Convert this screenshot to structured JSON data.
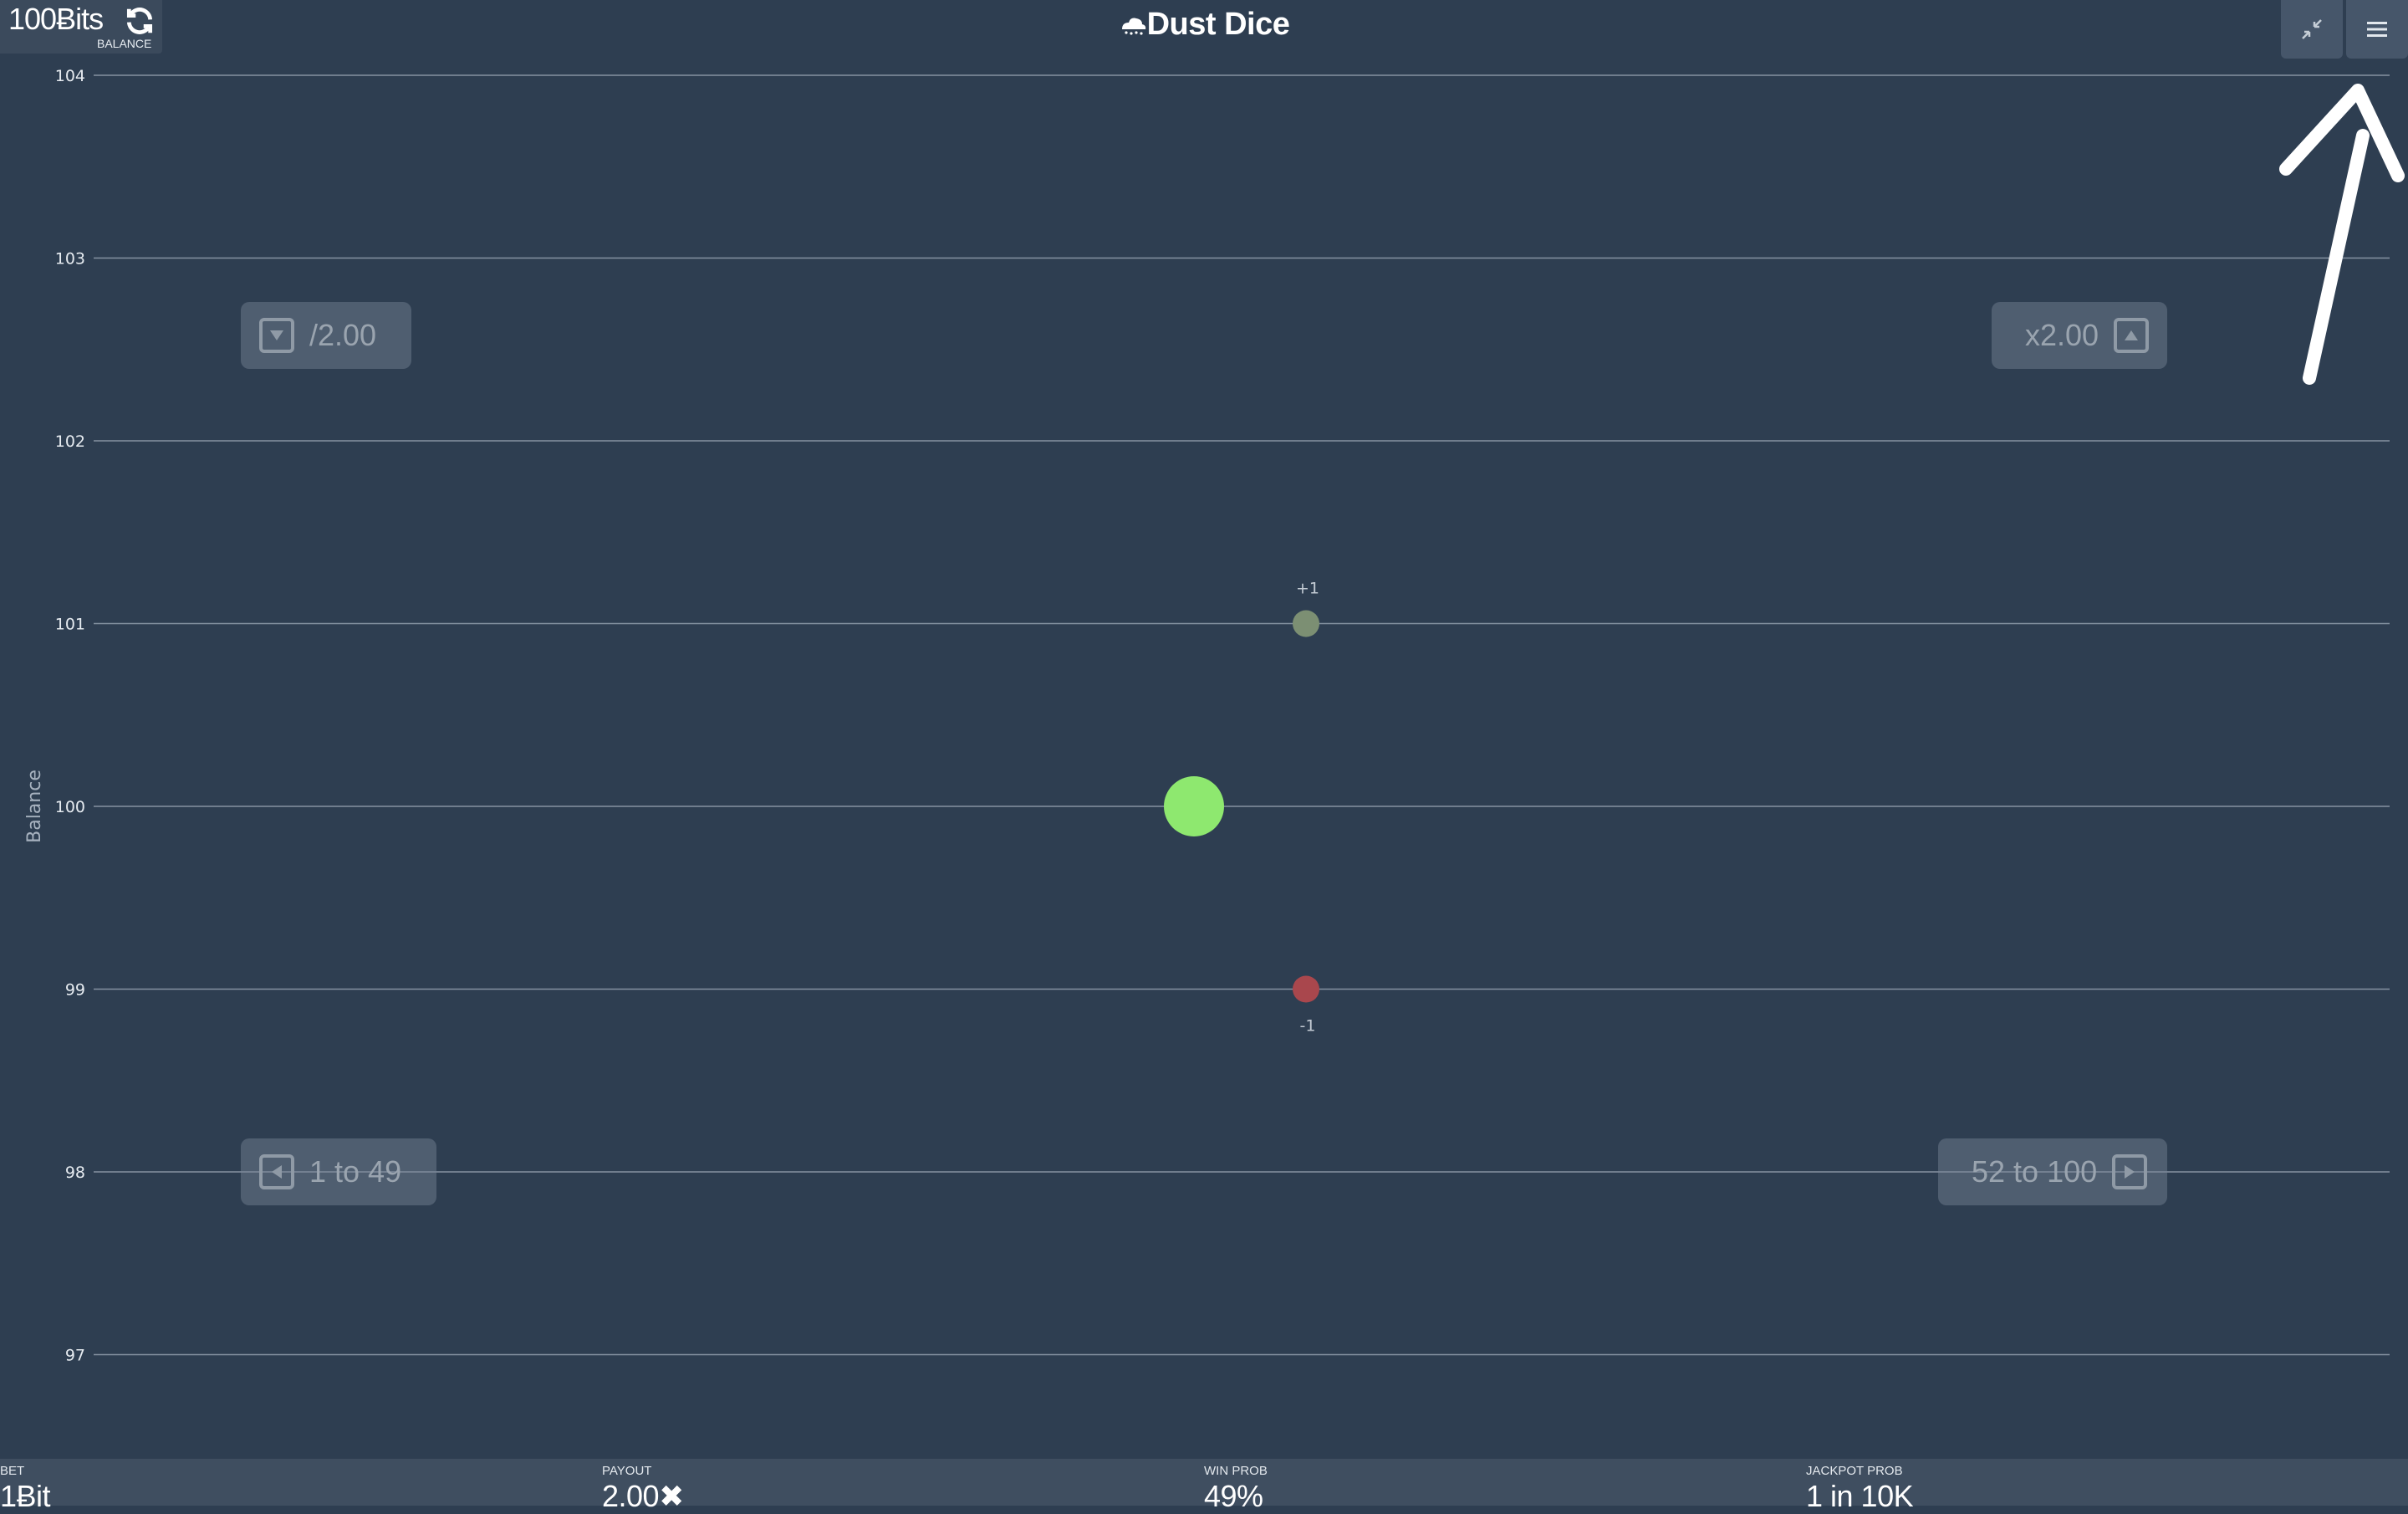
{
  "header": {
    "balance_value": "100Ƀits",
    "balance_caption": "BALANCE",
    "title": "Dust Dice",
    "refresh_icon": "refresh-icon",
    "compress_icon": "compress-icon",
    "menu_icon": "hamburger-menu-icon"
  },
  "chart_data": {
    "type": "scatter",
    "ylabel": "Balance",
    "ylim": [
      96.3,
      104
    ],
    "y_ticks": [
      104,
      103,
      102,
      101,
      100,
      99,
      98,
      97
    ],
    "grid": true,
    "x": [
      0,
      1,
      1
    ],
    "y": [
      100,
      101,
      99
    ],
    "points": [
      {
        "name": "current-balance",
        "x": 0,
        "y": 100,
        "label": "",
        "color": "#8ee86f"
      },
      {
        "name": "win-outcome",
        "x": 1,
        "y": 101,
        "label": "+1",
        "color": "#7c8f73"
      },
      {
        "name": "loss-outcome",
        "x": 1,
        "y": 99,
        "label": "-1",
        "color": "#a9474d"
      }
    ]
  },
  "hints": {
    "half": {
      "label": "/2.00",
      "icon": "arrow-down-icon"
    },
    "double": {
      "label": "x2.00",
      "icon": "arrow-up-icon"
    },
    "low": {
      "label": "1 to 49",
      "icon": "arrow-left-icon"
    },
    "high": {
      "label": "52 to 100",
      "icon": "arrow-right-icon"
    }
  },
  "footer": {
    "bet": {
      "label": "BET",
      "value": "1Ƀit"
    },
    "payout": {
      "label": "PAYOUT",
      "value": "2.00✖"
    },
    "win_prob": {
      "label": "WIN PROB",
      "value": "49%"
    },
    "jackpot_prob": {
      "label": "JACKPOT PROB",
      "value": "1 in 10K"
    }
  },
  "colors": {
    "background": "#2e3e51",
    "grid_line": "#8592a1",
    "current_point": "#8ee86f",
    "win_point": "#7c8f73",
    "loss_point": "#a9474d"
  }
}
